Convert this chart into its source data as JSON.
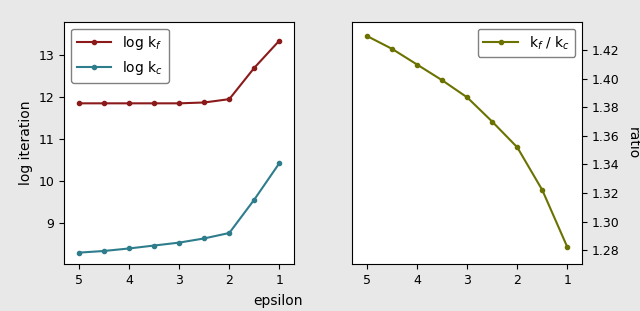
{
  "epsilon": [
    5.0,
    4.5,
    4.0,
    3.5,
    3.0,
    2.5,
    2.0,
    1.5,
    1.0
  ],
  "log_kf": [
    11.85,
    11.85,
    11.85,
    11.85,
    11.85,
    11.87,
    11.95,
    12.7,
    13.35
  ],
  "log_kc": [
    8.28,
    8.32,
    8.38,
    8.45,
    8.52,
    8.62,
    8.75,
    9.55,
    10.42
  ],
  "ratio": [
    1.43,
    1.421,
    1.41,
    1.399,
    1.387,
    1.37,
    1.352,
    1.322,
    1.282
  ],
  "color_kf": "#8b1a1a",
  "color_kc": "#2e7d8c",
  "color_ratio": "#6b7200",
  "xlabel": "epsilon",
  "ylabel_left": "log iteration",
  "ylabel_right": "ratio",
  "legend_kf": "log k$_f$",
  "legend_kc": "log k$_c$",
  "legend_ratio": "k$_f$ / k$_c$",
  "xlim_left": [
    5.3,
    0.7
  ],
  "xlim_right": [
    5.3,
    0.7
  ],
  "ylim_left": [
    8.0,
    13.8
  ],
  "ylim_right": [
    1.27,
    1.44
  ],
  "yticks_left": [
    9,
    10,
    11,
    12,
    13
  ],
  "yticks_right": [
    1.28,
    1.3,
    1.32,
    1.34,
    1.36,
    1.38,
    1.4,
    1.42
  ],
  "xticks": [
    5,
    4,
    3,
    2,
    1
  ],
  "fig_facecolor": "#e8e8e8",
  "marker": "o",
  "markersize": 3,
  "linewidth": 1.5,
  "legend_fontsize": 10,
  "axis_fontsize": 10
}
